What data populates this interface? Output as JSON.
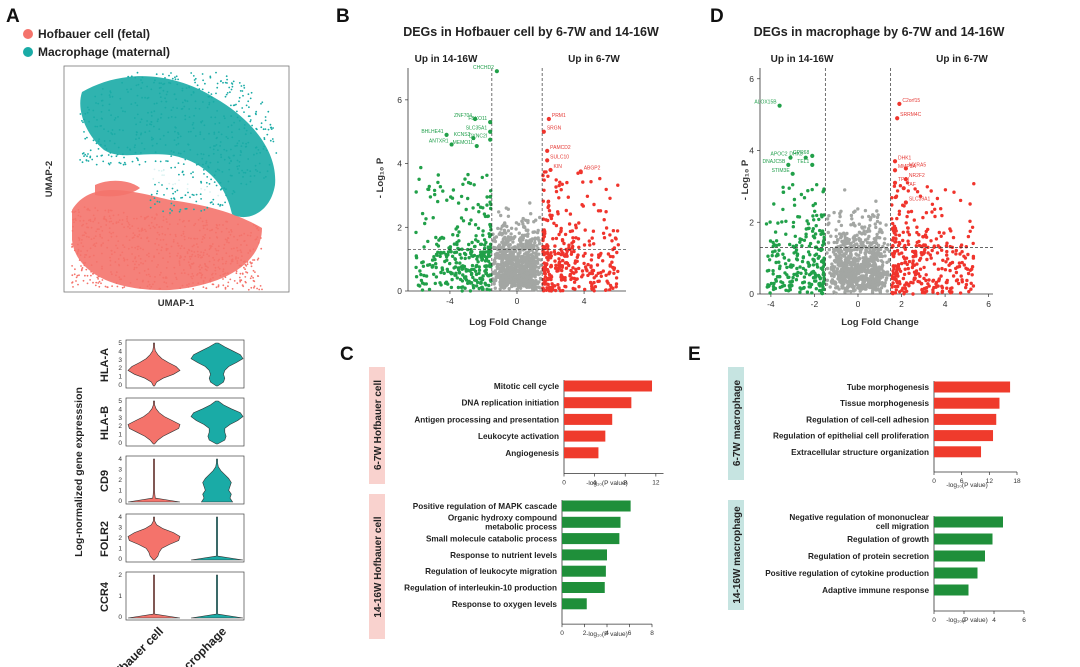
{
  "panels": {
    "a": {
      "label": "A",
      "legend": [
        {
          "text": "Hofbauer cell (fetal)",
          "color": "#f4736b"
        },
        {
          "text": "Macrophage (maternal)",
          "color": "#1aaba6"
        }
      ],
      "umap_xlabel": "UMAP-1",
      "umap_ylabel": "UMAP-2",
      "violin_ylabel": "Log-normalized gene expresssion",
      "genes": [
        {
          "name": "HLA-A",
          "ticks": [
            "5",
            "4",
            "3",
            "2",
            "1",
            "0"
          ],
          "hof": [
            0.0,
            0.1,
            0.35,
            0.75,
            1.0,
            0.85,
            0.55,
            0.3,
            0.15,
            0.05,
            0.02,
            0.0
          ],
          "mac": [
            0.0,
            0.25,
            0.3,
            0.25,
            0.3,
            0.45,
            0.75,
            1.0,
            0.9,
            0.6,
            0.3,
            0.05
          ]
        },
        {
          "name": "HLA-B",
          "ticks": [
            "5",
            "4",
            "3",
            "2",
            "1",
            "0"
          ],
          "hof": [
            0.0,
            0.15,
            0.35,
            0.65,
            0.95,
            1.0,
            0.7,
            0.4,
            0.2,
            0.08,
            0.02,
            0.0
          ],
          "mac": [
            0.0,
            0.3,
            0.35,
            0.3,
            0.3,
            0.5,
            0.8,
            1.0,
            0.9,
            0.55,
            0.25,
            0.05
          ]
        },
        {
          "name": "CD9",
          "ticks": [
            "4",
            "3",
            "2",
            "1",
            "0"
          ],
          "hof": [
            1.0,
            0.05,
            0.03,
            0.02,
            0.01,
            0.0,
            0.0,
            0.0,
            0.0,
            0.0,
            0.0,
            0.0
          ],
          "mac": [
            0.6,
            0.5,
            0.55,
            0.45,
            0.5,
            0.55,
            0.45,
            0.3,
            0.15,
            0.05,
            0.0,
            0.0
          ]
        },
        {
          "name": "FOLR2",
          "ticks": [
            "4",
            "3",
            "2",
            "1",
            "0"
          ],
          "hof": [
            0.0,
            0.15,
            0.2,
            0.3,
            0.6,
            0.95,
            1.0,
            0.75,
            0.35,
            0.1,
            0.02,
            0.0
          ],
          "mac": [
            1.0,
            0.02,
            0.02,
            0.01,
            0.01,
            0.01,
            0.01,
            0.0,
            0.0,
            0.0,
            0.0,
            0.0
          ]
        },
        {
          "name": "CCR4",
          "ticks": [
            "2",
            "1",
            "0"
          ],
          "hof": [
            1.0,
            0.02,
            0.02,
            0.01,
            0.01,
            0.01,
            0.01,
            0.01,
            0.0,
            0.0,
            0.0,
            0.0
          ],
          "mac": [
            1.0,
            0.02,
            0.02,
            0.01,
            0.01,
            0.01,
            0.01,
            0.0,
            0.0,
            0.0,
            0.0,
            0.0
          ]
        }
      ],
      "groups": [
        "Hofbauer cell",
        "Macrophage"
      ]
    },
    "b": {
      "label": "B",
      "title": "DEGs in Hofbauer cell by 6-7W and 14-16W",
      "left_note": "Up in 14-16W",
      "right_note": "Up in 6-7W",
      "xlabel": "Log Fold Change",
      "ylabel": "- Log₁₀ P",
      "xticks": [
        "-4",
        "0",
        "4"
      ],
      "yticks": [
        "0",
        "2",
        "4",
        "6"
      ],
      "down_genes": [
        "CHCHD2",
        "ZNF704",
        "FBXO11",
        "SLC35A1",
        "BHLHE41",
        "KCNS3",
        "DYNC2I",
        "ANTXR1",
        "MEMO1L"
      ],
      "up_genes": [
        "PRM1",
        "SRGN",
        "PAMCD2",
        "SULC10",
        "KIN",
        "ABGP2"
      ]
    },
    "d": {
      "label": "D",
      "title": "DEGs in macrophage by 6-7W and 14-16W",
      "left_note": "Up in 14-16W",
      "right_note": "Up in 6-7W",
      "xlabel": "Log Fold Change",
      "ylabel": "- Log₁₀ P",
      "xticks": [
        "-4",
        "-2",
        "0",
        "2",
        "4",
        "6"
      ],
      "yticks": [
        "0",
        "2",
        "4",
        "6"
      ],
      "down_genes": [
        "ALOX15B",
        "APOC2",
        "DNAJC5B",
        "STIM3E",
        "DHX3",
        "GPR68",
        "TEL1"
      ],
      "up_genes": [
        "C2orf15",
        "SRRM4C",
        "DHK1",
        "MMP9A",
        "TPSI",
        "MXRA5",
        "NR2F2",
        "TAF",
        "SLC39A1"
      ]
    },
    "c": {
      "label": "C",
      "up_label": "6-7W  Hofbauer cell",
      "down_label": "14-16W  Hofbauer cell",
      "up_xticks": [
        "0",
        "4",
        "8",
        "12"
      ],
      "down_xticks": [
        "0",
        "2",
        "4",
        "6",
        "8"
      ],
      "xlabel": "-log₁₀(P value)"
    },
    "e": {
      "label": "E",
      "up_label": "6-7W  macrophage",
      "down_label": "14-16W  macrophage",
      "up_xticks": [
        "0",
        "6",
        "12",
        "18"
      ],
      "down_xticks": [
        "0",
        "2",
        "4",
        "6"
      ],
      "xlabel": "-log₁₀(P value)"
    }
  },
  "chart_data": [
    {
      "panel": "C-top",
      "type": "bar",
      "orientation": "horizontal",
      "color": "#ef3b2c",
      "categories": [
        "Mitotic cell cycle",
        "DNA replication initiation",
        "Antigen processing and presentation",
        "Leukocyte activation",
        "Angiogenesis"
      ],
      "values": [
        11.5,
        8.8,
        6.3,
        5.4,
        4.5
      ],
      "xlim": [
        0,
        13
      ],
      "xlabel": "-log10(P value)"
    },
    {
      "panel": "C-bottom",
      "type": "bar",
      "orientation": "horizontal",
      "color": "#1f8f3a",
      "categories": [
        "Positive regulation of MAPK cascade",
        "Organic hydroxy compound metabolic process",
        "Small molecule catabolic process",
        "Response to nutrient levels",
        "Regulation of leukocyte migration",
        "Regulation of interleukin-10 production",
        "Response to oxygen levels"
      ],
      "values": [
        6.1,
        5.2,
        5.1,
        4.0,
        3.9,
        3.8,
        2.2
      ],
      "xlim": [
        0,
        8
      ],
      "xlabel": "-log10(P value)"
    },
    {
      "panel": "E-top",
      "type": "bar",
      "orientation": "horizontal",
      "color": "#ef3b2c",
      "categories": [
        "Tube morphogenesis",
        "Tissue morphogenesis",
        "Regulation of cell-cell adhesion",
        "Regulation of epithelial cell proliferation",
        "Extracellular structure organization"
      ],
      "values": [
        16.5,
        14.2,
        13.5,
        12.8,
        10.2
      ],
      "xlim": [
        0,
        18
      ],
      "xlabel": "-log10(P value)"
    },
    {
      "panel": "E-bottom",
      "type": "bar",
      "orientation": "horizontal",
      "color": "#1f8f3a",
      "categories": [
        "Negative regulation of mononuclear cell migration",
        "Regulation of growth",
        "Regulation of protein secretion",
        "Positive regulation of cytokine production",
        "Adaptive immune response"
      ],
      "values": [
        4.6,
        3.9,
        3.4,
        2.9,
        2.3
      ],
      "xlim": [
        0,
        6
      ],
      "xlabel": "-log10(P value)"
    },
    {
      "panel": "B",
      "type": "scatter",
      "xlim": [
        -6.5,
        6.5
      ],
      "ylim": [
        0,
        7
      ],
      "thresholds": {
        "log_fc": [
          -1.5,
          1.5
        ],
        "neg_log10_p": 1.3
      }
    },
    {
      "panel": "D",
      "type": "scatter",
      "xlim": [
        -4.5,
        6.2
      ],
      "ylim": [
        0,
        6.3
      ],
      "thresholds": {
        "log_fc": [
          -1.5,
          1.5
        ],
        "neg_log10_p": 1.3
      }
    }
  ]
}
